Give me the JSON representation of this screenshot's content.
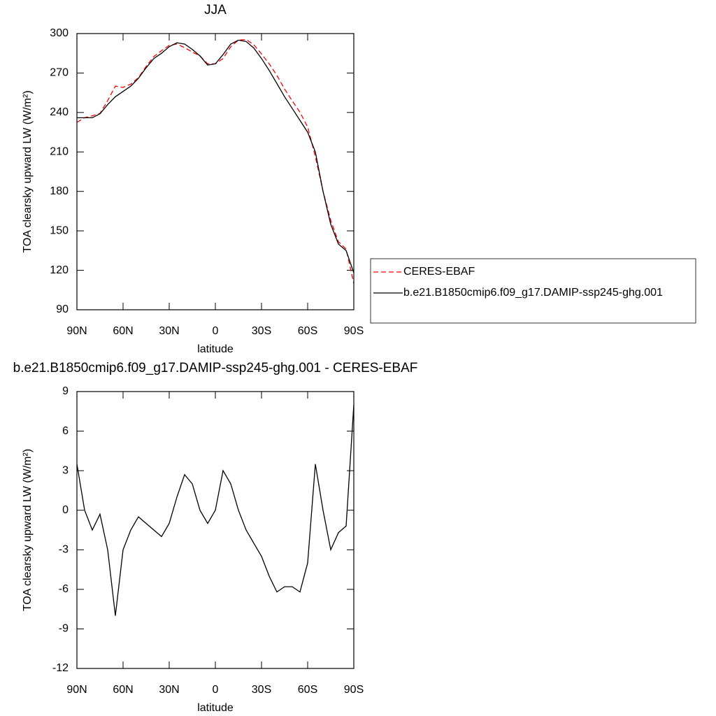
{
  "chart_data": [
    {
      "type": "line",
      "title": "JJA",
      "xlabel": "latitude",
      "ylabel": "TOA clearsky upward LW (W/m²)",
      "x": [
        90,
        85,
        80,
        75,
        70,
        65,
        60,
        55,
        50,
        45,
        40,
        35,
        30,
        25,
        20,
        15,
        10,
        5,
        0,
        -5,
        -10,
        -15,
        -20,
        -25,
        -30,
        -35,
        -40,
        -45,
        -50,
        -55,
        -60,
        -65,
        -70,
        -75,
        -80,
        -85,
        -90
      ],
      "series": [
        {
          "name": "CERES-EBAF",
          "color": "#ff0000",
          "dashed": true,
          "values": [
            232.5,
            236,
            237.5,
            239.3,
            249,
            260,
            259,
            261.5,
            266.5,
            275,
            282.5,
            287,
            291,
            292,
            289.3,
            286,
            283,
            277,
            277,
            281,
            290,
            295,
            295.5,
            291.5,
            284.5,
            277,
            268.2,
            257.8,
            248.8,
            240.2,
            229,
            206.5,
            180,
            158,
            141.7,
            136.2,
            110
          ]
        },
        {
          "name": "b.e21.B1850cmip6.f09_g17.DAMIP-ssp245-ghg.001",
          "color": "#000000",
          "dashed": false,
          "values": [
            236,
            236,
            236,
            239,
            246,
            252,
            256,
            260,
            266,
            274,
            281,
            285,
            290,
            293,
            292,
            288,
            283,
            276,
            277,
            284,
            292,
            295,
            294,
            289,
            281,
            272,
            262,
            252,
            243,
            234,
            225,
            210,
            180,
            155,
            140,
            135,
            118
          ]
        }
      ],
      "xlim": [
        90,
        -90
      ],
      "xticks": [
        {
          "value": 90,
          "label": "90N"
        },
        {
          "value": 60,
          "label": "60N"
        },
        {
          "value": 30,
          "label": "30N"
        },
        0,
        {
          "value": -30,
          "label": "30S"
        },
        {
          "value": -60,
          "label": "60S"
        },
        {
          "value": -90,
          "label": "90S"
        }
      ],
      "ylim": [
        90,
        300
      ],
      "yticks": [
        90,
        120,
        150,
        180,
        210,
        240,
        270,
        300
      ]
    },
    {
      "type": "line",
      "title": "b.e21.B1850cmip6.f09_g17.DAMIP-ssp245-ghg.001 - CERES-EBAF",
      "xlabel": "latitude",
      "ylabel": "TOA clearsky upward LW (W/m²)",
      "x": [
        90,
        85,
        80,
        75,
        70,
        65,
        60,
        55,
        50,
        45,
        40,
        35,
        30,
        25,
        20,
        15,
        10,
        5,
        0,
        -5,
        -10,
        -15,
        -20,
        -25,
        -30,
        -35,
        -40,
        -45,
        -50,
        -55,
        -60,
        -65,
        -70,
        -75,
        -80,
        -85,
        -90
      ],
      "series": [
        {
          "color": "#000000",
          "dashed": false,
          "values": [
            3.5,
            0,
            -1.5,
            -0.3,
            -3,
            -8,
            -3,
            -1.5,
            -0.5,
            -1,
            -1.5,
            -2,
            -1,
            1,
            2.7,
            2,
            0,
            -1,
            0,
            3,
            2,
            0,
            -1.5,
            -2.5,
            -3.5,
            -5,
            -6.2,
            -5.8,
            -5.8,
            -6.2,
            -4,
            3.5,
            0,
            -3,
            -1.7,
            -1.2,
            8
          ]
        }
      ],
      "xlim": [
        90,
        -90
      ],
      "xticks": [
        {
          "value": 90,
          "label": "90N"
        },
        {
          "value": 60,
          "label": "60N"
        },
        {
          "value": 30,
          "label": "30N"
        },
        0,
        {
          "value": -30,
          "label": "30S"
        },
        {
          "value": -60,
          "label": "60S"
        },
        {
          "value": -90,
          "label": "90S"
        }
      ],
      "ylim": [
        -12,
        9
      ],
      "yticks": [
        -12,
        -9,
        -6,
        -3,
        0,
        3,
        6,
        9
      ]
    }
  ]
}
